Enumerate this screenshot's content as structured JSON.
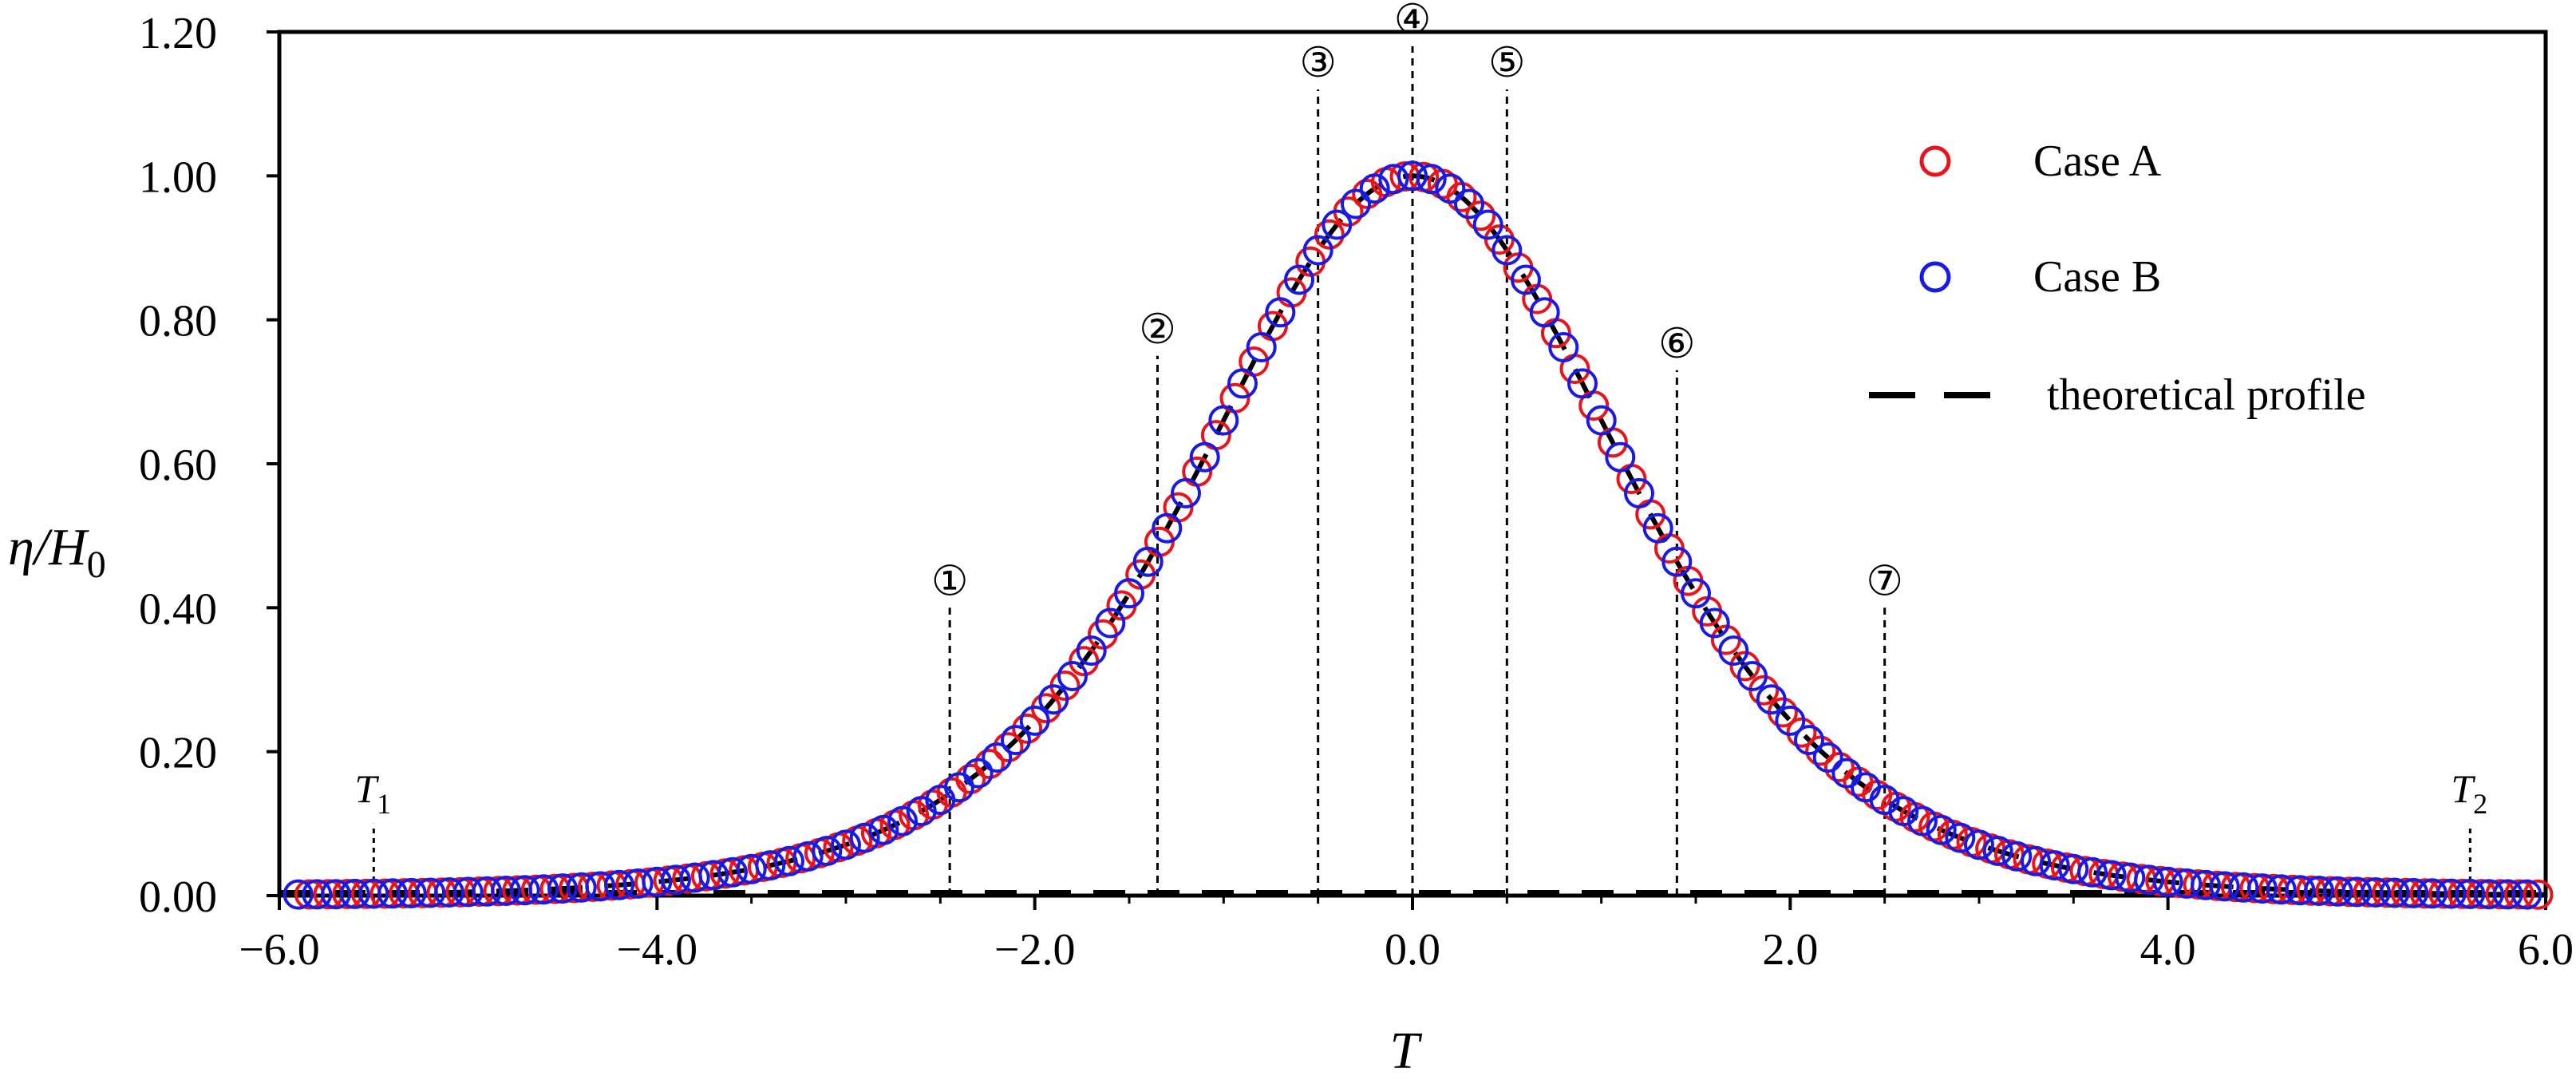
{
  "chart_data": {
    "type": "scatter",
    "title": "",
    "xlabel": "T",
    "ylabel": "η/H",
    "ylabel_subscript": "0",
    "xlim": [
      -6.0,
      6.0
    ],
    "ylim": [
      0.0,
      1.2
    ],
    "x_ticks": [
      -6.0,
      -4.0,
      -2.0,
      0.0,
      2.0,
      4.0,
      6.0
    ],
    "x_tick_labels": [
      "−6.0",
      "−4.0",
      "−2.0",
      "0.0",
      "2.0",
      "4.0",
      "6.0"
    ],
    "y_ticks": [
      0.0,
      0.2,
      0.4,
      0.6,
      0.8,
      1.0,
      1.2
    ],
    "y_tick_labels": [
      "0.00",
      "0.20",
      "0.40",
      "0.60",
      "0.80",
      "1.00",
      "1.20"
    ],
    "grid": false,
    "legend_position": "top-right",
    "legend": {
      "case_a": "Case A",
      "case_b": "Case B",
      "theory": "theoretical profile"
    },
    "profile": {
      "kind": "sech2",
      "amplitude": 1.0,
      "width": 1.5,
      "center": 0.0,
      "t_min": -5.9,
      "t_max": 5.9,
      "t_step": 0.1
    },
    "series": [
      {
        "name": "Case A",
        "color": "#e8141c",
        "marker": "open-circle",
        "x_offset": 0.06
      },
      {
        "name": "Case B",
        "color": "#1a1ae6",
        "marker": "open-circle",
        "x_offset": 0.0
      },
      {
        "name": "theoretical profile",
        "color": "#000000",
        "style": "dashed"
      }
    ],
    "markers": [
      {
        "label": "①",
        "x": -2.45,
        "y": 0.22
      },
      {
        "label": "②",
        "x": -1.35,
        "y": 0.57
      },
      {
        "label": "③",
        "x": -0.5,
        "y": 0.94
      },
      {
        "label": "④",
        "x": 0.0,
        "y": 1.0
      },
      {
        "label": "⑤",
        "x": 0.5,
        "y": 0.94
      },
      {
        "label": "⑥",
        "x": 1.4,
        "y": 0.55
      },
      {
        "label": "⑦",
        "x": 2.5,
        "y": 0.22
      }
    ],
    "t_markers": [
      {
        "label": "T",
        "subscript": "1",
        "x": -5.5,
        "y": 0.02
      },
      {
        "label": "T",
        "subscript": "2",
        "x": 5.6,
        "y": 0.02
      }
    ]
  }
}
